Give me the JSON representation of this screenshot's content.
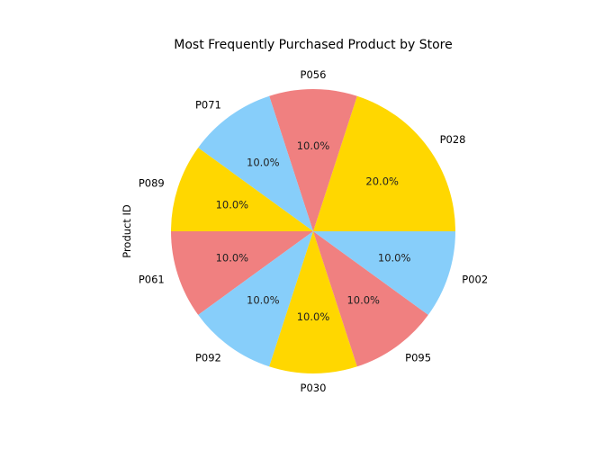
{
  "chart_data": {
    "type": "pie",
    "title": "Most Frequently Purchased Product by Store",
    "ylabel": "Product ID",
    "slices": [
      {
        "label": "P028",
        "value": 20.0,
        "pct_label": "20.0%",
        "color": "#FFD700"
      },
      {
        "label": "P056",
        "value": 10.0,
        "pct_label": "10.0%",
        "color": "#F08080"
      },
      {
        "label": "P071",
        "value": 10.0,
        "pct_label": "10.0%",
        "color": "#87CEFA"
      },
      {
        "label": "P089",
        "value": 10.0,
        "pct_label": "10.0%",
        "color": "#FFD700"
      },
      {
        "label": "P061",
        "value": 10.0,
        "pct_label": "10.0%",
        "color": "#F08080"
      },
      {
        "label": "P092",
        "value": 10.0,
        "pct_label": "10.0%",
        "color": "#87CEFA"
      },
      {
        "label": "P030",
        "value": 10.0,
        "pct_label": "10.0%",
        "color": "#FFD700"
      },
      {
        "label": "P095",
        "value": 10.0,
        "pct_label": "10.0%",
        "color": "#F08080"
      },
      {
        "label": "P002",
        "value": 10.0,
        "pct_label": "10.0%",
        "color": "#87CEFA"
      }
    ],
    "start_angle_deg": 0,
    "direction": "counterclockwise"
  }
}
